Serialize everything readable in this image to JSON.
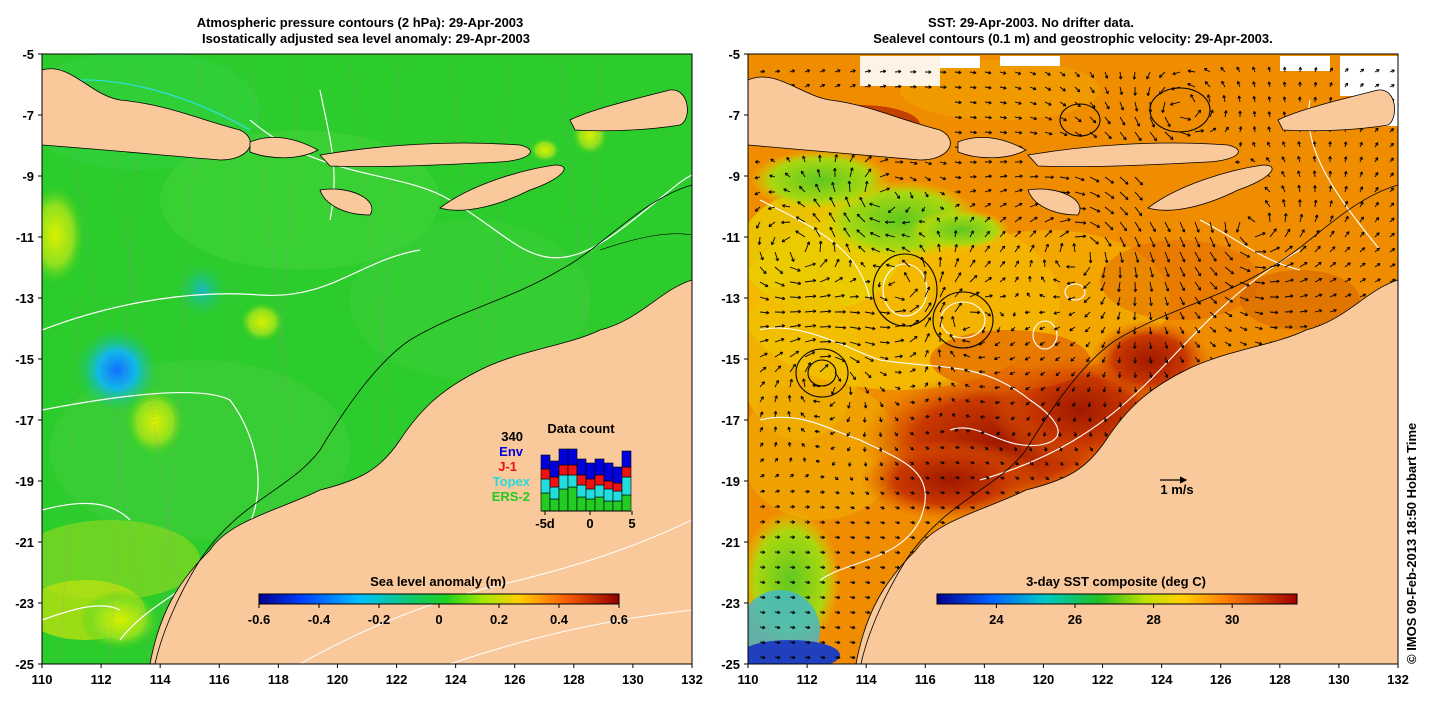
{
  "left_panel": {
    "title_line1": "Atmospheric pressure contours (2 hPa): 29-Apr-2003",
    "title_line2": "Isostatically adjusted sea level anomaly: 29-Apr-2003",
    "colorbar_title": "Sea level anomaly (m)",
    "colorbar_ticks": [
      "-0.6",
      "-0.4",
      "-0.2",
      "0",
      "0.2",
      "0.4",
      "0.6"
    ],
    "data_count": {
      "title": "Data count",
      "total": "340",
      "legend": [
        {
          "label": "Env",
          "color": "#0000dd"
        },
        {
          "label": "J-1",
          "color": "#ee1111"
        },
        {
          "label": "Topex",
          "color": "#22dddd"
        },
        {
          "label": "ERS-2",
          "color": "#22cc22"
        }
      ],
      "x_ticks": [
        "-5d",
        "0",
        "5"
      ]
    }
  },
  "right_panel": {
    "title_line1": "SST: 29-Apr-2003. No drifter data.",
    "title_line2": "Sealevel contours (0.1 m) and geostrophic velocity: 29-Apr-2003.",
    "colorbar_title": "3-day SST composite (deg C)",
    "colorbar_ticks": [
      "24",
      "26",
      "28",
      "30"
    ],
    "velocity_scale_label": "1 m/s"
  },
  "axes": {
    "x_ticks": [
      "110",
      "112",
      "114",
      "116",
      "118",
      "120",
      "122",
      "124",
      "126",
      "128",
      "130",
      "132"
    ],
    "y_ticks": [
      "-5",
      "-7",
      "-9",
      "-11",
      "-13",
      "-15",
      "-17",
      "-19",
      "-21",
      "-23",
      "-25"
    ]
  },
  "credit": "© IMOS 09-Feb-2013 18:50 Hobart Time",
  "colors": {
    "land": "#f9c89b",
    "ocean_left": "#22cc22",
    "sst_hot": "#b02000",
    "sst_warm": "#f07800"
  }
}
